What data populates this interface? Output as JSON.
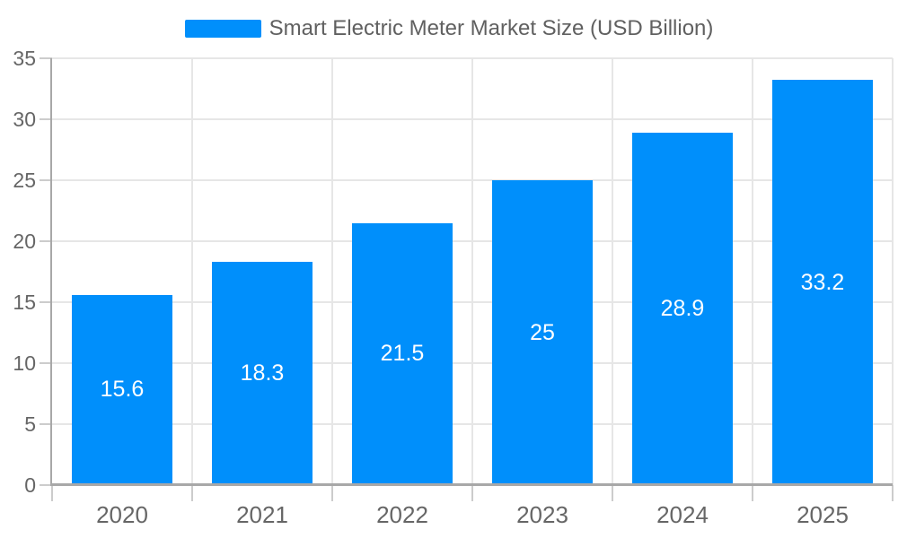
{
  "chart_data": {
    "type": "bar",
    "title": "Smart Electric Meter Market Size (USD Billion)",
    "series": [
      {
        "name": "Smart Electric Meter Market Size (USD Billion)",
        "values": [
          15.6,
          18.3,
          21.5,
          25,
          28.9,
          33.2
        ],
        "value_labels": [
          "15.6",
          "18.3",
          "21.5",
          "25",
          "28.9",
          "33.2"
        ]
      }
    ],
    "categories": [
      "2020",
      "2021",
      "2022",
      "2023",
      "2024",
      "2025"
    ],
    "xlabel": "",
    "ylabel": "",
    "ylim": [
      0,
      35
    ],
    "yticks": [
      0,
      5,
      10,
      15,
      20,
      25,
      30,
      35
    ],
    "ytick_labels": [
      "0",
      "5",
      "10",
      "15",
      "20",
      "25",
      "30",
      "35"
    ],
    "grid": true,
    "legend_position": "top",
    "data_labels": "inside-center"
  },
  "colors": {
    "bar": "#008FFB",
    "grid_line": "#e6e6e6",
    "axis_line": "#a8a8a8",
    "tick_line": "#cccccc",
    "tick_label": "#666666",
    "title_text": "#606060",
    "data_label": "#ffffff",
    "background": "#ffffff"
  }
}
